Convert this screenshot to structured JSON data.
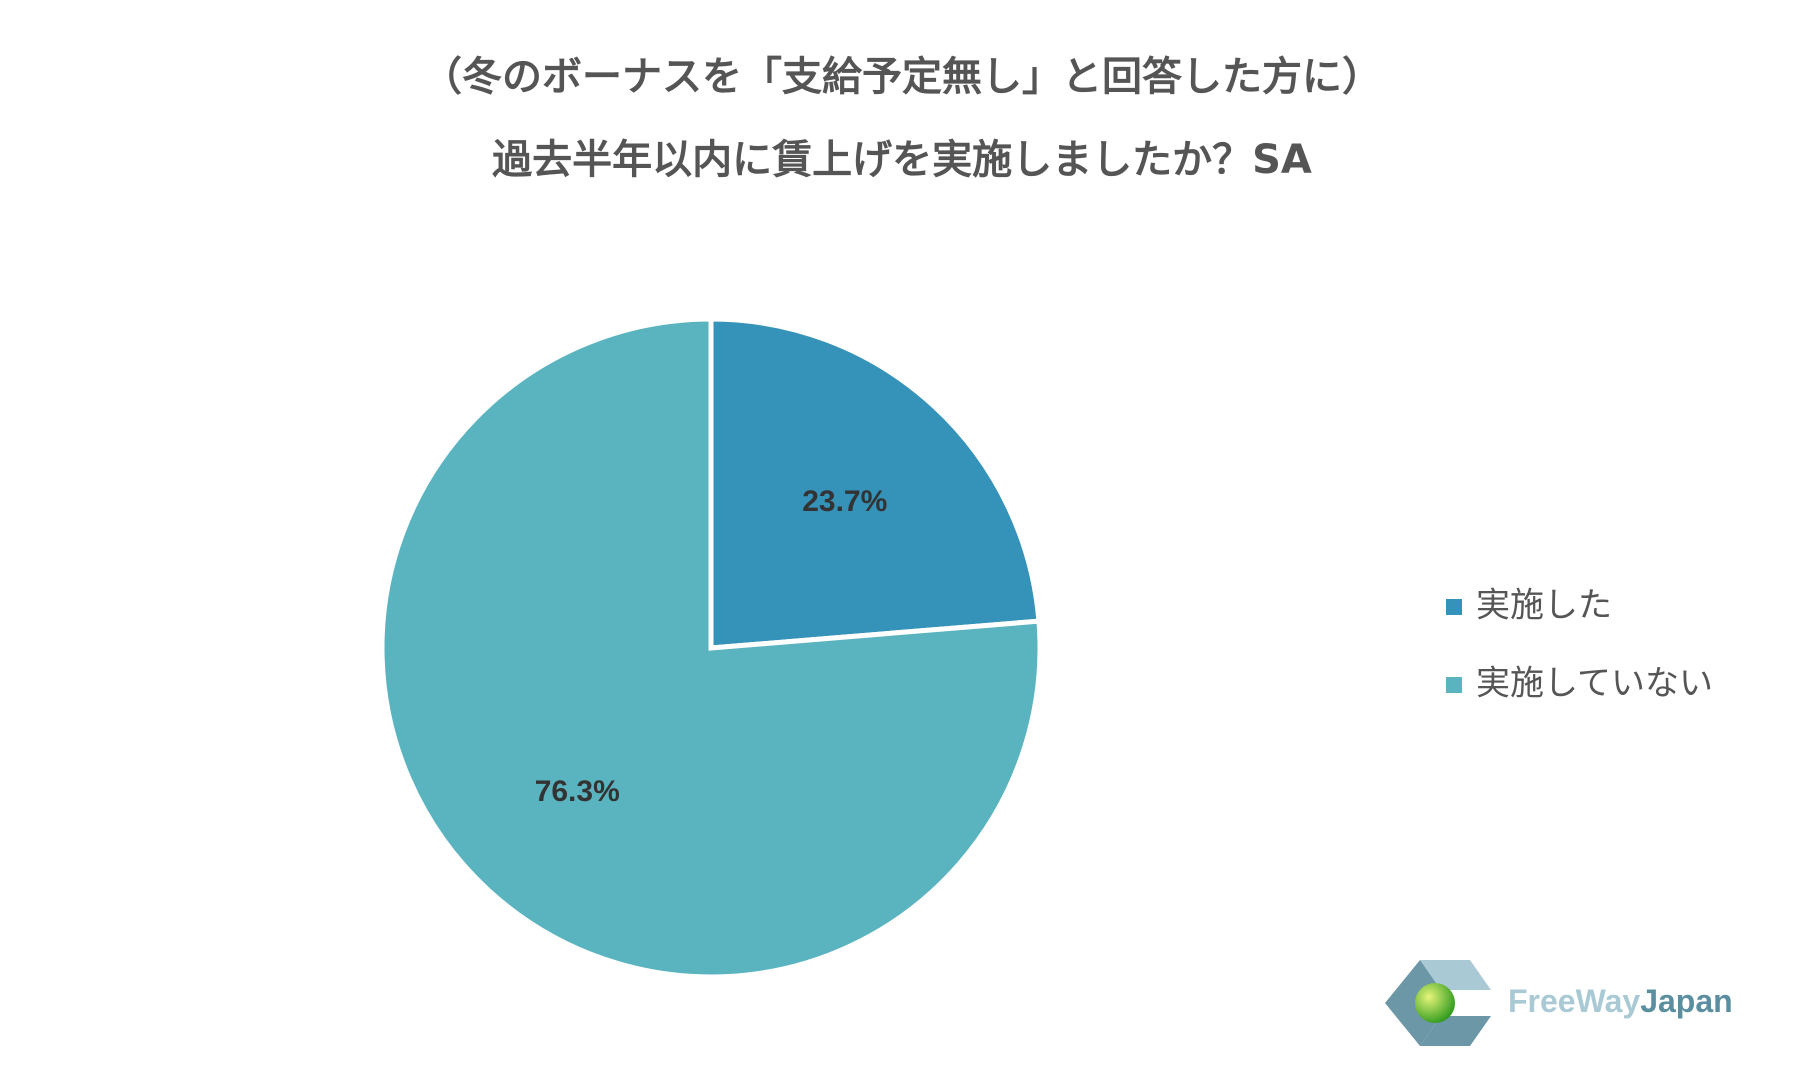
{
  "chart_data": {
    "type": "pie",
    "title": [
      "（冬のボーナスを「支給予定無し」と回答した方に）",
      "過去半年以内に賃上げを実施しましたか？SA"
    ],
    "categories": [
      "実施した",
      "実施していない"
    ],
    "values": [
      23.7,
      76.3
    ],
    "value_labels": [
      "23.7%",
      "76.3%"
    ],
    "colors": [
      "#3592b8",
      "#5ab4c0"
    ],
    "legend": "right"
  },
  "logo": {
    "part1": "FreeWay",
    "part2": "Japan"
  }
}
